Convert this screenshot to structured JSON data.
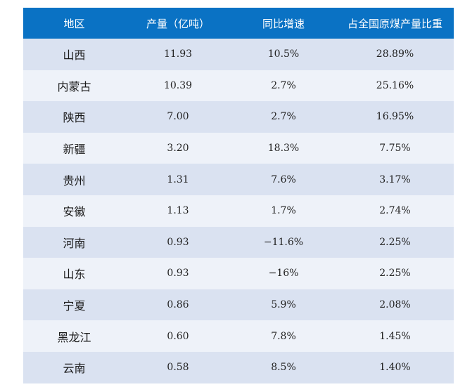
{
  "chart_data": {
    "type": "table",
    "columns": [
      "地区",
      "产量（亿吨）",
      "同比增速",
      "占全国原煤产量比重"
    ],
    "rows": [
      [
        "山西",
        "11.93",
        "10.5%",
        "28.89%"
      ],
      [
        "内蒙古",
        "10.39",
        "2.7%",
        "25.16%"
      ],
      [
        "陕西",
        "7.00",
        "2.7%",
        "16.95%"
      ],
      [
        "新疆",
        "3.20",
        "18.3%",
        "7.75%"
      ],
      [
        "贵州",
        "1.31",
        "7.6%",
        "3.17%"
      ],
      [
        "安徽",
        "1.13",
        "1.7%",
        "2.74%"
      ],
      [
        "河南",
        "0.93",
        "−11.6%",
        "2.25%"
      ],
      [
        "山东",
        "0.93",
        "−16%",
        "2.25%"
      ],
      [
        "宁夏",
        "0.86",
        "5.9%",
        "2.08%"
      ],
      [
        "黑龙江",
        "0.60",
        "7.8%",
        "1.45%"
      ],
      [
        "云南",
        "0.58",
        "8.5%",
        "1.40%"
      ]
    ]
  },
  "colors": {
    "header_bg": "#0a72c4",
    "header_text": "#ffffff",
    "row_odd": "#dae2f1",
    "row_even": "#eef2f9",
    "cell_text": "#222222"
  }
}
